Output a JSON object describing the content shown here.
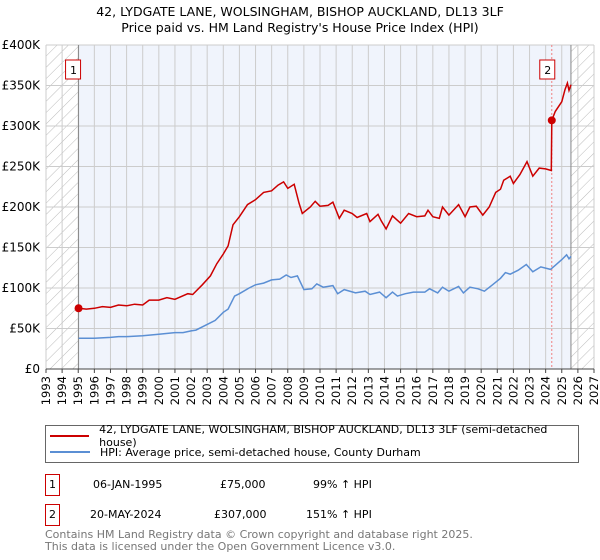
{
  "title_line1": "42, LYDGATE LANE, WOLSINGHAM, BISHOP AUCKLAND, DL13 3LF",
  "title_line2": "Price paid vs. HM Land Registry's House Price Index (HPI)",
  "colors": {
    "property": "#cc0000",
    "hpi": "#5b8fd4",
    "plot_bg": "#f0f4fc",
    "hatch": "#bbbbbb"
  },
  "chart_data": {
    "type": "line",
    "xlim": [
      1993,
      2027
    ],
    "ylim": [
      0,
      400000
    ],
    "x_ticks": [
      "1993",
      "1994",
      "1995",
      "1996",
      "1997",
      "1998",
      "1999",
      "2000",
      "2001",
      "2002",
      "2003",
      "2004",
      "2005",
      "2006",
      "2007",
      "2008",
      "2009",
      "2010",
      "2011",
      "2012",
      "2013",
      "2014",
      "2015",
      "2016",
      "2017",
      "2018",
      "2019",
      "2020",
      "2021",
      "2022",
      "2023",
      "2024",
      "2025",
      "2026",
      "2027"
    ],
    "y_ticks": [
      {
        "v": 0,
        "label": "£0"
      },
      {
        "v": 50000,
        "label": "£50K"
      },
      {
        "v": 100000,
        "label": "£100K"
      },
      {
        "v": 150000,
        "label": "£150K"
      },
      {
        "v": 200000,
        "label": "£200K"
      },
      {
        "v": 250000,
        "label": "£250K"
      },
      {
        "v": 300000,
        "label": "£300K"
      },
      {
        "v": 350000,
        "label": "£350K"
      },
      {
        "v": 400000,
        "label": "£400K"
      }
    ],
    "data_range": [
      1995.02,
      2025.57
    ],
    "series": [
      {
        "name": "42, LYDGATE LANE, WOLSINGHAM, BISHOP AUCKLAND, DL13 3LF (semi-detached house)",
        "color": "#cc0000",
        "points": [
          [
            1995.02,
            75000
          ],
          [
            1995.5,
            74000
          ],
          [
            1996,
            75000
          ],
          [
            1996.5,
            77000
          ],
          [
            1997,
            76000
          ],
          [
            1997.5,
            79000
          ],
          [
            1998,
            78000
          ],
          [
            1998.5,
            80000
          ],
          [
            1999,
            79000
          ],
          [
            1999.4,
            85000
          ],
          [
            2000,
            85000
          ],
          [
            2000.5,
            88000
          ],
          [
            2001,
            86000
          ],
          [
            2001.8,
            93000
          ],
          [
            2002.1,
            92000
          ],
          [
            2002.7,
            104000
          ],
          [
            2003.2,
            115000
          ],
          [
            2003.6,
            130000
          ],
          [
            2004,
            142000
          ],
          [
            2004.3,
            152000
          ],
          [
            2004.6,
            178000
          ],
          [
            2005,
            188000
          ],
          [
            2005.5,
            203000
          ],
          [
            2006,
            209000
          ],
          [
            2006.5,
            218000
          ],
          [
            2007,
            220000
          ],
          [
            2007.4,
            227000
          ],
          [
            2007.74,
            231000
          ],
          [
            2008,
            223000
          ],
          [
            2008.4,
            228000
          ],
          [
            2008.7,
            205000
          ],
          [
            2008.9,
            192000
          ],
          [
            2009.4,
            200000
          ],
          [
            2009.7,
            207000
          ],
          [
            2010,
            201000
          ],
          [
            2010.5,
            202000
          ],
          [
            2010.8,
            206000
          ],
          [
            2011.2,
            186000
          ],
          [
            2011.5,
            196000
          ],
          [
            2012,
            192000
          ],
          [
            2012.3,
            187000
          ],
          [
            2012.9,
            192000
          ],
          [
            2013.1,
            182000
          ],
          [
            2013.6,
            191000
          ],
          [
            2013.8,
            183000
          ],
          [
            2014.1,
            173000
          ],
          [
            2014.5,
            189000
          ],
          [
            2015,
            180000
          ],
          [
            2015.5,
            192000
          ],
          [
            2016,
            188000
          ],
          [
            2016.5,
            189000
          ],
          [
            2016.7,
            196000
          ],
          [
            2017,
            188000
          ],
          [
            2017.4,
            186000
          ],
          [
            2017.6,
            200000
          ],
          [
            2018,
            190000
          ],
          [
            2018.6,
            203000
          ],
          [
            2019,
            188000
          ],
          [
            2019.3,
            200000
          ],
          [
            2019.7,
            201000
          ],
          [
            2020.1,
            190000
          ],
          [
            2020.5,
            200000
          ],
          [
            2020.9,
            218000
          ],
          [
            2021.2,
            222000
          ],
          [
            2021.4,
            233000
          ],
          [
            2021.8,
            238000
          ],
          [
            2022,
            229000
          ],
          [
            2022.4,
            240000
          ],
          [
            2022.84,
            256000
          ],
          [
            2023.2,
            238000
          ],
          [
            2023.6,
            248000
          ],
          [
            2024,
            247000
          ],
          [
            2024.35,
            245000
          ],
          [
            2024.38,
            307000
          ],
          [
            2024.6,
            318000
          ],
          [
            2025,
            330000
          ],
          [
            2025.2,
            345000
          ],
          [
            2025.35,
            353000
          ],
          [
            2025.45,
            344000
          ],
          [
            2025.57,
            351000
          ]
        ]
      },
      {
        "name": "HPI: Average price, semi-detached house, County Durham",
        "color": "#5b8fd4",
        "points": [
          [
            1995.02,
            38000
          ],
          [
            1996,
            38000
          ],
          [
            1997,
            39000
          ],
          [
            1997.5,
            40000
          ],
          [
            1998,
            40000
          ],
          [
            1999,
            41000
          ],
          [
            2000,
            43000
          ],
          [
            2001,
            45000
          ],
          [
            2001.5,
            45000
          ],
          [
            2002,
            47000
          ],
          [
            2002.3,
            48000
          ],
          [
            2003,
            55000
          ],
          [
            2003.5,
            60000
          ],
          [
            2004,
            70000
          ],
          [
            2004.3,
            74000
          ],
          [
            2004.7,
            90000
          ],
          [
            2005,
            93000
          ],
          [
            2005.6,
            100000
          ],
          [
            2006,
            104000
          ],
          [
            2006.5,
            106000
          ],
          [
            2007,
            110000
          ],
          [
            2007.5,
            111000
          ],
          [
            2007.9,
            116000
          ],
          [
            2008.2,
            113000
          ],
          [
            2008.6,
            115000
          ],
          [
            2009,
            98000
          ],
          [
            2009.5,
            99000
          ],
          [
            2009.8,
            105000
          ],
          [
            2010.2,
            101000
          ],
          [
            2010.8,
            103000
          ],
          [
            2011.1,
            93000
          ],
          [
            2011.5,
            98000
          ],
          [
            2012.2,
            94000
          ],
          [
            2012.8,
            96000
          ],
          [
            2013.1,
            92000
          ],
          [
            2013.7,
            95000
          ],
          [
            2014.1,
            88000
          ],
          [
            2014.5,
            95000
          ],
          [
            2014.8,
            90000
          ],
          [
            2015.3,
            93000
          ],
          [
            2015.8,
            95000
          ],
          [
            2016.5,
            95000
          ],
          [
            2016.8,
            99000
          ],
          [
            2017.3,
            94000
          ],
          [
            2017.6,
            101000
          ],
          [
            2018,
            96000
          ],
          [
            2018.6,
            102000
          ],
          [
            2018.9,
            94000
          ],
          [
            2019.3,
            101000
          ],
          [
            2019.8,
            99000
          ],
          [
            2020.2,
            96000
          ],
          [
            2020.7,
            104000
          ],
          [
            2021.2,
            112000
          ],
          [
            2021.5,
            119000
          ],
          [
            2021.8,
            117000
          ],
          [
            2022.3,
            122000
          ],
          [
            2022.8,
            129000
          ],
          [
            2023.2,
            120000
          ],
          [
            2023.7,
            126000
          ],
          [
            2024.3,
            123000
          ],
          [
            2024.6,
            128000
          ],
          [
            2025,
            135000
          ],
          [
            2025.3,
            141000
          ],
          [
            2025.45,
            136000
          ],
          [
            2025.57,
            139000
          ]
        ]
      }
    ],
    "sales": [
      {
        "id": "1",
        "x": 1995.02,
        "y": 75000
      },
      {
        "id": "2",
        "x": 2024.38,
        "y": 307000
      }
    ]
  },
  "legend": {
    "property": "42, LYDGATE LANE, WOLSINGHAM, BISHOP AUCKLAND, DL13 3LF (semi-detached house)",
    "hpi": "HPI: Average price, semi-detached house, County Durham"
  },
  "transactions": [
    {
      "id": "1",
      "date": "06-JAN-1995",
      "price": "£75,000",
      "hpi": "99% ↑ HPI"
    },
    {
      "id": "2",
      "date": "20-MAY-2024",
      "price": "£307,000",
      "hpi": "151% ↑ HPI"
    }
  ],
  "footer": {
    "line1": "Contains HM Land Registry data © Crown copyright and database right 2025.",
    "line2": "This data is licensed under the Open Government Licence v3.0."
  }
}
